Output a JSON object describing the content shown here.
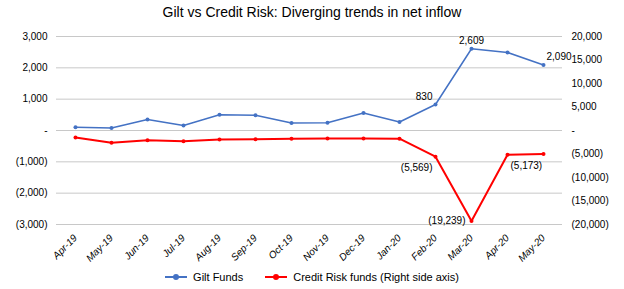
{
  "chart_data": {
    "type": "line",
    "title": "Gilt vs Credit Risk: Diverging trends in net inflow",
    "categories": [
      "Apr-19",
      "May-19",
      "Jun-19",
      "Jul-19",
      "Aug-19",
      "Sep-19",
      "Oct-19",
      "Nov-19",
      "Dec-19",
      "Jan-20",
      "Feb-20",
      "Mar-20",
      "Apr-20",
      "May-20"
    ],
    "series": [
      {
        "name": "Gilt Funds",
        "color": "#4472C4",
        "marker": "circle",
        "values": [
          100,
          80,
          350,
          160,
          500,
          490,
          240,
          250,
          560,
          270,
          830,
          2609,
          2490,
          2090
        ]
      },
      {
        "name": "Credit Risk funds (Right side axis)",
        "color": "#FF0000",
        "marker": "circle",
        "axis": "y2",
        "values": [
          -1500,
          -2600,
          -2100,
          -2300,
          -1900,
          -1850,
          -1750,
          -1700,
          -1700,
          -1750,
          -5569,
          -19239,
          -5173,
          -5000
        ]
      }
    ],
    "ylim": [
      -3000,
      3000
    ],
    "yticks": [
      {
        "value": 3000,
        "label": "3,000"
      },
      {
        "value": 2000,
        "label": "2,000"
      },
      {
        "value": 1000,
        "label": "1,000"
      },
      {
        "value": 0,
        "label": "-"
      },
      {
        "value": -1000,
        "label": "(1,000)"
      },
      {
        "value": -2000,
        "label": "(2,000)"
      },
      {
        "value": -3000,
        "label": "(3,000)"
      }
    ],
    "y2lim": [
      -20000,
      20000
    ],
    "y2ticks": [
      {
        "value": 20000,
        "label": "20,000"
      },
      {
        "value": 15000,
        "label": "15,000"
      },
      {
        "value": 10000,
        "label": "10,000"
      },
      {
        "value": 5000,
        "label": "5,000"
      },
      {
        "value": 0,
        "label": "-"
      },
      {
        "value": -5000,
        "label": "(5,000)"
      },
      {
        "value": -10000,
        "label": "(10,000)"
      },
      {
        "value": -15000,
        "label": "(15,000)"
      },
      {
        "value": -20000,
        "label": "(20,000)"
      }
    ],
    "grid": true,
    "legend": "bottom",
    "annotations": [
      {
        "text": "830",
        "x": "Feb-20",
        "y": 830
      },
      {
        "text": "2,609",
        "x": "Mar-20",
        "y": 2609
      },
      {
        "text": "2,090",
        "x": "May-20",
        "y": 2090
      },
      {
        "text": "(5,569)",
        "x": "Feb-20",
        "y": -5569,
        "axis": "y2"
      },
      {
        "text": "(19,239)",
        "x": "Mar-20",
        "y": -19239,
        "axis": "y2"
      },
      {
        "text": "(5,173)",
        "x": "Apr-20",
        "y": -5173,
        "axis": "y2"
      }
    ]
  }
}
